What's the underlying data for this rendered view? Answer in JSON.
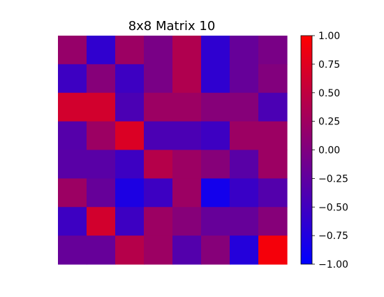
{
  "chart_data": {
    "type": "heatmap",
    "title": "8x8 Matrix 10",
    "rows": 8,
    "cols": 8,
    "values": [
      [
        0.18,
        -0.62,
        0.22,
        -0.05,
        0.38,
        -0.63,
        -0.2,
        -0.05
      ],
      [
        -0.52,
        0.05,
        -0.52,
        -0.05,
        0.38,
        -0.63,
        -0.2,
        0.02
      ],
      [
        0.65,
        0.65,
        -0.41,
        0.22,
        0.22,
        0.05,
        0.05,
        -0.41
      ],
      [
        -0.33,
        0.22,
        0.72,
        -0.41,
        -0.41,
        -0.52,
        0.22,
        0.22
      ],
      [
        -0.3,
        -0.3,
        -0.52,
        0.42,
        0.22,
        0.05,
        -0.3,
        0.22
      ],
      [
        0.22,
        -0.2,
        -0.78,
        -0.52,
        0.22,
        -0.85,
        -0.55,
        -0.35
      ],
      [
        -0.52,
        0.65,
        -0.52,
        0.22,
        0.05,
        -0.2,
        -0.2,
        0.05
      ],
      [
        -0.2,
        -0.2,
        0.42,
        0.22,
        -0.35,
        0.05,
        -0.72,
        0.92
      ]
    ],
    "colorbar": {
      "min": -1.0,
      "max": 1.0,
      "ticks": [
        "1.00",
        "0.75",
        "0.50",
        "0.25",
        "0.00",
        "−0.25",
        "−0.50",
        "−0.75",
        "−1.00"
      ],
      "low_color": "#0000ff",
      "high_color": "#ff0000"
    },
    "axes": {
      "x_ticks": "hidden",
      "y_ticks": "hidden"
    }
  }
}
